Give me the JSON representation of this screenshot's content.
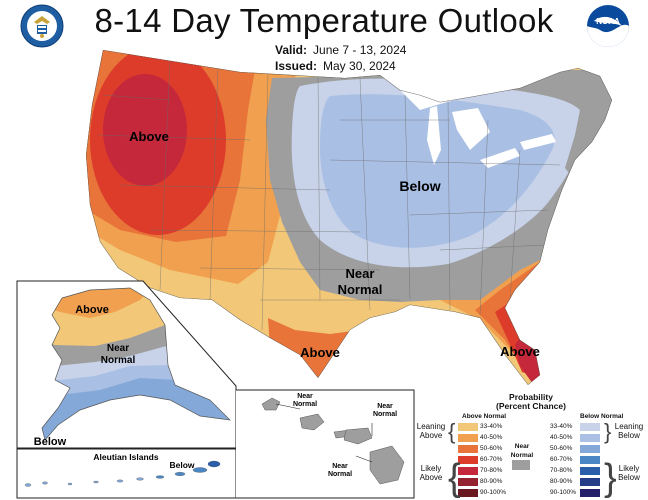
{
  "header": {
    "title": "8-14 Day Temperature Outlook",
    "valid_label": "Valid:",
    "valid_value": "June 7 - 13, 2024",
    "issued_label": "Issued:",
    "issued_value": "May 30, 2024"
  },
  "logos": {
    "left": "commerce-seal",
    "right": "noaa-logo",
    "noaa_text": "NOAA"
  },
  "map_labels": {
    "west": "Above",
    "east": "Below",
    "center_line1": "Near",
    "center_line2": "Normal",
    "texas": "Above",
    "florida": "Above"
  },
  "alaska": {
    "north": "Above",
    "center_line1": "Near",
    "center_line2": "Normal",
    "south": "Below"
  },
  "aleutians": {
    "title": "Aleutian Islands",
    "label": "Below"
  },
  "hawaii": {
    "label_left_1": "Near",
    "label_left_2": "Normal",
    "label_right_1": "Near",
    "label_right_2": "Normal",
    "label_bottom_1": "Near",
    "label_bottom_2": "Normal"
  },
  "legend": {
    "title_line1": "Probability",
    "title_line2": "(Percent Chance)",
    "above_header": "Above Normal",
    "below_header": "Below Normal",
    "near_header_1": "Near",
    "near_header_2": "Normal",
    "above_ranges": [
      "33-40%",
      "40-50%",
      "50-60%",
      "60-70%",
      "70-80%",
      "80-90%",
      "90-100%"
    ],
    "below_ranges": [
      "33-40%",
      "40-50%",
      "50-60%",
      "60-70%",
      "70-80%",
      "80-90%",
      "90-100%"
    ],
    "above_colors": [
      "#f2c878",
      "#f0a04e",
      "#e8743a",
      "#dd3c2a",
      "#c4283a",
      "#952230",
      "#6a1820"
    ],
    "below_colors": [
      "#c8d3ea",
      "#a9bfe3",
      "#84a9d8",
      "#4a86c3",
      "#2a5ea8",
      "#253c88",
      "#241f68"
    ],
    "near_color": "#9e9e9e",
    "leaning_above_1": "Leaning",
    "leaning_above_2": "Above",
    "likely_above_1": "Likely",
    "likely_above_2": "Above",
    "leaning_below_1": "Leaning",
    "leaning_below_2": "Below",
    "likely_below_1": "Likely",
    "likely_below_2": "Below"
  }
}
